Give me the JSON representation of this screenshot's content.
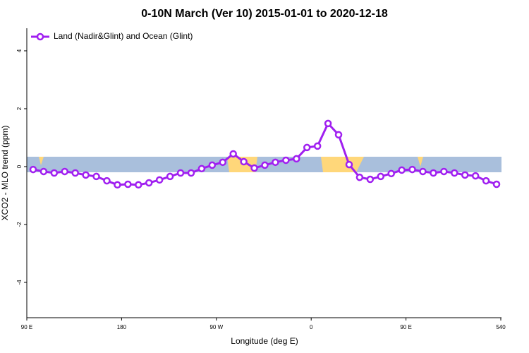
{
  "chart_data": {
    "type": "line",
    "title": "0-10N March (Ver 10)   2015-01-01 to 2020-12-18",
    "xlabel": "Longitude (deg E)",
    "ylabel": "XCO2 - MLO trend (ppm)",
    "x": [
      96,
      106,
      116,
      126,
      136,
      146,
      156,
      166,
      176,
      186,
      196,
      206,
      216,
      226,
      236,
      246,
      256,
      266,
      276,
      286,
      296,
      306,
      316,
      326,
      336,
      346,
      356,
      366,
      376,
      386,
      396,
      406,
      416,
      426,
      436,
      446,
      456,
      466,
      476,
      486,
      496,
      506,
      516,
      526,
      536
    ],
    "series": [
      {
        "name": "Land (Nadir&Glint) and Ocean (Glint)",
        "color": "#a020f0",
        "values": [
          -0.1,
          -0.17,
          -0.22,
          -0.17,
          -0.22,
          -0.29,
          -0.34,
          -0.49,
          -0.63,
          -0.61,
          -0.63,
          -0.56,
          -0.46,
          -0.34,
          -0.22,
          -0.22,
          -0.07,
          0.05,
          0.15,
          0.44,
          0.17,
          -0.05,
          0.05,
          0.15,
          0.22,
          0.27,
          0.66,
          0.71,
          1.49,
          1.1,
          0.07,
          -0.37,
          -0.44,
          -0.34,
          -0.24,
          -0.12,
          -0.1,
          -0.17,
          -0.22,
          -0.17,
          -0.22,
          -0.29,
          -0.32,
          -0.49,
          -0.61
        ]
      }
    ],
    "xlim": [
      90,
      540
    ],
    "xticks": [
      {
        "value": 90,
        "label": "90 E"
      },
      180,
      {
        "value": 270,
        "label": "90 W"
      },
      {
        "value": 360,
        "label": "0"
      },
      {
        "value": 450,
        "label": "90 E"
      },
      540
    ],
    "ylim": [
      -5.22,
      4.78
    ],
    "yticks": [
      -4,
      -2,
      0,
      2,
      4
    ],
    "legend_position": "top-left"
  }
}
